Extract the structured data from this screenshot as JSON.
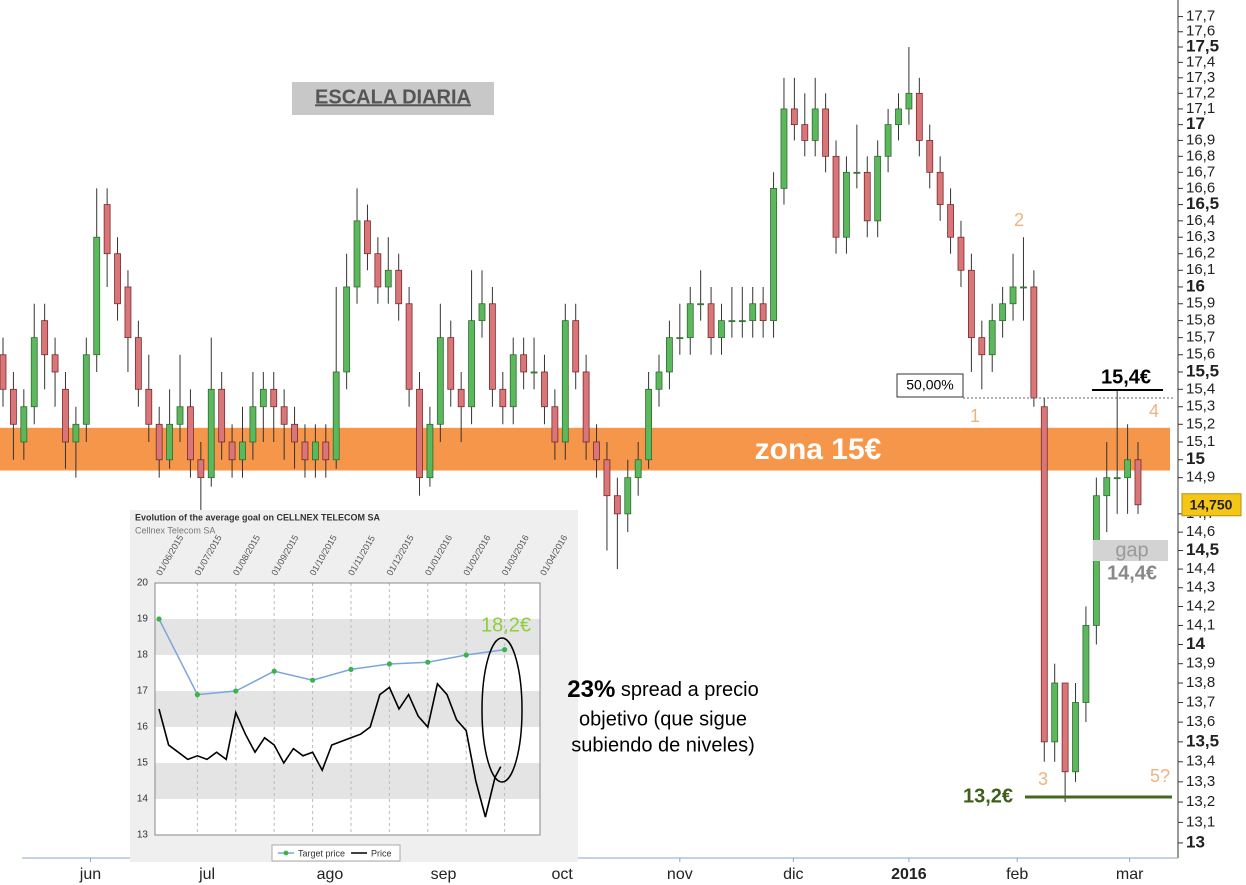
{
  "chart_data": [
    {
      "type": "candlestick",
      "log_scale": true,
      "ylim": [
        12.927,
        17.81
      ],
      "yticks": [
        13,
        {
          "value": 13.1,
          "label": "13,1"
        },
        {
          "value": 13.2,
          "label": "13,2"
        },
        {
          "value": 13.3,
          "label": "13,3"
        },
        {
          "value": 13.4,
          "label": "13,4"
        },
        {
          "value": 13.5,
          "label": "13,5"
        },
        {
          "value": 13.6,
          "label": "13,6"
        },
        {
          "value": 13.7,
          "label": "13,7"
        },
        {
          "value": 13.8,
          "label": "13,8"
        },
        {
          "value": 13.9,
          "label": "13,9"
        },
        14,
        {
          "value": 14.1,
          "label": "14,1"
        },
        {
          "value": 14.2,
          "label": "14,2"
        },
        {
          "value": 14.3,
          "label": "14,3"
        },
        {
          "value": 14.4,
          "label": "14,4"
        },
        {
          "value": 14.5,
          "label": "14,5"
        },
        {
          "value": 14.6,
          "label": "14,6"
        },
        {
          "value": 14.7,
          "label": "14,7"
        },
        {
          "value": 14.9,
          "label": "14,9"
        },
        15,
        {
          "value": 15.1,
          "label": "15,1"
        },
        {
          "value": 15.2,
          "label": "15,2"
        },
        {
          "value": 15.3,
          "label": "15,3"
        },
        {
          "value": 15.4,
          "label": "15,4"
        },
        {
          "value": 15.5,
          "label": "15,5"
        },
        {
          "value": 15.6,
          "label": "15,6"
        },
        {
          "value": 15.7,
          "label": "15,7"
        },
        {
          "value": 15.8,
          "label": "15,8"
        },
        {
          "value": 15.9,
          "label": "15,9"
        },
        16,
        {
          "value": 16.1,
          "label": "16,1"
        },
        {
          "value": 16.2,
          "label": "16,2"
        },
        {
          "value": 16.3,
          "label": "16,3"
        },
        {
          "value": 16.4,
          "label": "16,4"
        },
        {
          "value": 16.5,
          "label": "16,5"
        },
        {
          "value": 16.6,
          "label": "16,6"
        },
        {
          "value": 16.7,
          "label": "16,7"
        },
        {
          "value": 16.8,
          "label": "16,8"
        },
        {
          "value": 16.9,
          "label": "16,9"
        },
        17,
        {
          "value": 17.1,
          "label": "17,1"
        },
        {
          "value": 17.2,
          "label": "17,2"
        },
        {
          "value": 17.3,
          "label": "17,3"
        },
        {
          "value": 17.4,
          "label": "17,4"
        },
        {
          "value": 17.5,
          "label": "17,5"
        },
        {
          "value": 17.6,
          "label": "17,6"
        },
        {
          "value": 17.7,
          "label": "17,7"
        }
      ],
      "xticks": [
        {
          "value": 8.4,
          "label": "jun"
        },
        {
          "value": 19.6,
          "label": "jul"
        },
        {
          "value": 31.4,
          "label": "ago"
        },
        {
          "value": 42.3,
          "label": "sep"
        },
        {
          "value": 53.7,
          "label": "oct"
        },
        {
          "value": 65,
          "label": "nov"
        },
        {
          "value": 75.9,
          "label": "dic"
        },
        {
          "value": 87,
          "label": "2016"
        },
        {
          "value": 97.4,
          "label": "feb"
        },
        {
          "value": 108.2,
          "label": "mar"
        }
      ],
      "up_color": "#5cb85c",
      "down_color": "#d9767a",
      "values": [
        [
          15.6,
          15.7,
          15.3,
          15.4
        ],
        [
          15.4,
          15.5,
          15.0,
          15.2
        ],
        [
          15.1,
          15.4,
          15.0,
          15.3
        ],
        [
          15.3,
          15.9,
          15.2,
          15.7
        ],
        [
          15.8,
          15.9,
          15.4,
          15.6
        ],
        [
          15.6,
          15.7,
          15.3,
          15.5
        ],
        [
          15.4,
          15.5,
          14.95,
          15.1
        ],
        [
          15.1,
          15.3,
          14.9,
          15.2
        ],
        [
          15.2,
          15.7,
          15.1,
          15.6
        ],
        [
          15.6,
          16.6,
          15.5,
          16.3
        ],
        [
          16.5,
          16.6,
          16.0,
          16.2
        ],
        [
          16.2,
          16.3,
          15.8,
          15.9
        ],
        [
          16.0,
          16.1,
          15.5,
          15.7
        ],
        [
          15.7,
          15.8,
          15.3,
          15.4
        ],
        [
          15.4,
          15.6,
          15.1,
          15.2
        ],
        [
          15.2,
          15.3,
          14.9,
          15.0
        ],
        [
          15.0,
          15.4,
          14.95,
          15.2
        ],
        [
          15.2,
          15.6,
          15.1,
          15.3
        ],
        [
          15.3,
          15.4,
          14.9,
          15.0
        ],
        [
          15.0,
          15.1,
          14.7,
          14.9
        ],
        [
          14.9,
          15.7,
          14.85,
          15.4
        ],
        [
          15.4,
          15.5,
          15.0,
          15.1
        ],
        [
          15.1,
          15.2,
          14.9,
          15.0
        ],
        [
          15.0,
          15.3,
          14.9,
          15.1
        ],
        [
          15.1,
          15.5,
          15.0,
          15.3
        ],
        [
          15.3,
          15.5,
          15.1,
          15.4
        ],
        [
          15.4,
          15.5,
          15.1,
          15.3
        ],
        [
          15.3,
          15.4,
          15.0,
          15.2
        ],
        [
          15.2,
          15.3,
          14.95,
          15.1
        ],
        [
          15.1,
          15.2,
          14.9,
          15.0
        ],
        [
          15.0,
          15.2,
          14.9,
          15.1
        ],
        [
          15.1,
          15.2,
          14.9,
          15.0
        ],
        [
          15.0,
          16.0,
          14.95,
          15.5
        ],
        [
          15.5,
          16.2,
          15.4,
          16.0
        ],
        [
          16.0,
          16.6,
          15.9,
          16.4
        ],
        [
          16.4,
          16.5,
          16.1,
          16.2
        ],
        [
          16.2,
          16.3,
          15.9,
          16.0
        ],
        [
          16.0,
          16.3,
          15.9,
          16.1
        ],
        [
          16.1,
          16.2,
          15.8,
          15.9
        ],
        [
          15.9,
          16.0,
          15.3,
          15.4
        ],
        [
          15.4,
          15.5,
          14.8,
          14.9
        ],
        [
          14.9,
          15.3,
          14.85,
          15.2
        ],
        [
          15.2,
          15.9,
          15.1,
          15.7
        ],
        [
          15.7,
          15.8,
          15.3,
          15.4
        ],
        [
          15.4,
          15.5,
          15.1,
          15.3
        ],
        [
          15.3,
          16.1,
          15.2,
          15.8
        ],
        [
          15.8,
          16.1,
          15.7,
          15.9
        ],
        [
          15.9,
          16.0,
          15.3,
          15.4
        ],
        [
          15.4,
          15.5,
          15.2,
          15.3
        ],
        [
          15.3,
          15.7,
          15.2,
          15.6
        ],
        [
          15.6,
          15.7,
          15.4,
          15.5
        ],
        [
          15.5,
          15.7,
          15.4,
          15.5
        ],
        [
          15.5,
          15.6,
          15.2,
          15.3
        ],
        [
          15.3,
          15.4,
          15.0,
          15.1
        ],
        [
          15.1,
          15.9,
          15.0,
          15.8
        ],
        [
          15.8,
          15.9,
          15.4,
          15.5
        ],
        [
          15.5,
          15.6,
          15.0,
          15.1
        ],
        [
          15.1,
          15.2,
          14.9,
          15.0
        ],
        [
          15.0,
          15.1,
          14.5,
          14.8
        ],
        [
          14.8,
          14.9,
          14.4,
          14.7
        ],
        [
          14.7,
          15.0,
          14.6,
          14.9
        ],
        [
          14.9,
          15.1,
          14.8,
          15.0
        ],
        [
          15.0,
          15.5,
          14.95,
          15.4
        ],
        [
          15.4,
          15.6,
          15.3,
          15.5
        ],
        [
          15.5,
          15.8,
          15.4,
          15.7
        ],
        [
          15.7,
          15.9,
          15.6,
          15.7
        ],
        [
          15.7,
          16.0,
          15.6,
          15.9
        ],
        [
          15.9,
          16.1,
          15.8,
          15.9
        ],
        [
          15.9,
          16.0,
          15.6,
          15.7
        ],
        [
          15.7,
          15.9,
          15.6,
          15.8
        ],
        [
          15.8,
          16.0,
          15.7,
          15.8
        ],
        [
          15.8,
          16.0,
          15.7,
          15.8
        ],
        [
          15.8,
          16.0,
          15.7,
          15.9
        ],
        [
          15.9,
          16.0,
          15.7,
          15.8
        ],
        [
          15.8,
          16.7,
          15.7,
          16.6
        ],
        [
          16.6,
          17.3,
          16.5,
          17.1
        ],
        [
          17.1,
          17.3,
          16.9,
          17.0
        ],
        [
          17.0,
          17.2,
          16.8,
          16.9
        ],
        [
          16.9,
          17.3,
          16.8,
          17.1
        ],
        [
          17.1,
          17.2,
          16.7,
          16.8
        ],
        [
          16.8,
          16.9,
          16.2,
          16.3
        ],
        [
          16.3,
          16.8,
          16.2,
          16.7
        ],
        [
          16.7,
          17.0,
          16.6,
          16.7
        ],
        [
          16.7,
          16.8,
          16.3,
          16.4
        ],
        [
          16.4,
          16.9,
          16.3,
          16.8
        ],
        [
          16.8,
          17.1,
          16.7,
          17.0
        ],
        [
          17.0,
          17.2,
          16.9,
          17.1
        ],
        [
          17.1,
          17.5,
          17.0,
          17.2
        ],
        [
          17.2,
          17.3,
          16.8,
          16.9
        ],
        [
          16.9,
          17.0,
          16.6,
          16.7
        ],
        [
          16.7,
          16.8,
          16.4,
          16.5
        ],
        [
          16.5,
          16.6,
          16.2,
          16.3
        ],
        [
          16.3,
          16.4,
          16.0,
          16.1
        ],
        [
          16.1,
          16.2,
          15.5,
          15.7
        ],
        [
          15.7,
          15.8,
          15.4,
          15.6
        ],
        [
          15.6,
          15.9,
          15.5,
          15.8
        ],
        [
          15.8,
          16.0,
          15.7,
          15.9
        ],
        [
          15.9,
          16.2,
          15.8,
          16.0
        ],
        [
          16.0,
          16.3,
          15.8,
          16.0
        ],
        [
          16.0,
          16.1,
          15.3,
          15.35
        ],
        [
          15.3,
          15.35,
          13.4,
          13.5
        ],
        [
          13.5,
          13.9,
          13.4,
          13.8
        ],
        [
          13.8,
          13.8,
          13.2,
          13.35
        ],
        [
          13.35,
          13.8,
          13.3,
          13.7
        ],
        [
          13.7,
          14.2,
          13.6,
          14.1
        ],
        [
          14.1,
          14.9,
          14.0,
          14.8
        ],
        [
          14.8,
          15.1,
          14.6,
          14.9
        ],
        [
          14.9,
          15.4,
          14.7,
          14.9
        ],
        [
          14.9,
          15.2,
          14.7,
          15.0
        ],
        [
          15.0,
          15.1,
          14.7,
          14.75
        ]
      ],
      "band": [
        14.94,
        15.18
      ],
      "band_color": "#f5964a",
      "last_price": {
        "value": 14.75,
        "label": "14,750"
      },
      "annotations": {
        "scale": "ESCALA DIARIA",
        "zone": "zona 15€",
        "retracement": "50,00%",
        "resistance": "15,4€",
        "gap": "gap",
        "gap_level": "14,4€",
        "support": "13,2€",
        "wave1": "1",
        "wave2": "2",
        "wave3": "3",
        "wave4": "4",
        "wave5": "5?",
        "note_highlight": "23%",
        "note_lines": [
          " spread a precio",
          "objetivo (que sigue",
          "subiendo de niveles)"
        ]
      }
    },
    {
      "type": "line",
      "title": "Evolution of the average goal on CELLNEX TELECOM SA",
      "subtitle": "Cellnex Telecom SA",
      "categories": [
        "01/06/2015",
        "01/07/2015",
        "01/08/2015",
        "01/09/2015",
        "01/10/2015",
        "01/11/2015",
        "01/12/2015",
        "01/01/2016",
        "01/02/2016",
        "01/03/2016",
        "01/04/2016"
      ],
      "ylim": [
        13,
        20
      ],
      "yticks": [
        13,
        14,
        15,
        16,
        17,
        18,
        19,
        20
      ],
      "series": [
        {
          "name": "Target price",
          "color": "#7aa6dc",
          "marker_color": "#3cb34a",
          "values": [
            19.0,
            16.9,
            17.0,
            17.55,
            17.3,
            17.6,
            17.75,
            17.8,
            18.0,
            18.15,
            null
          ]
        },
        {
          "name": "Price",
          "color": "#000000",
          "x": [
            0,
            0.25,
            0.5,
            0.75,
            1,
            1.25,
            1.5,
            1.75,
            2,
            2.25,
            2.5,
            2.75,
            3,
            3.25,
            3.5,
            3.75,
            4,
            4.25,
            4.5,
            4.75,
            5,
            5.25,
            5.5,
            5.75,
            6,
            6.25,
            6.5,
            6.75,
            7,
            7.25,
            7.5,
            7.75,
            8,
            8.25,
            8.5,
            8.75,
            8.9
          ],
          "values": [
            16.5,
            15.5,
            15.3,
            15.1,
            15.2,
            15.1,
            15.3,
            15.1,
            16.4,
            15.8,
            15.3,
            15.7,
            15.5,
            15.0,
            15.4,
            15.2,
            15.3,
            14.8,
            15.5,
            15.6,
            15.7,
            15.8,
            16.0,
            16.9,
            17.1,
            16.5,
            16.9,
            16.3,
            16.0,
            17.2,
            16.9,
            16.2,
            15.9,
            14.5,
            13.5,
            14.6,
            14.9
          ]
        }
      ],
      "target_label": "18,2€"
    }
  ]
}
